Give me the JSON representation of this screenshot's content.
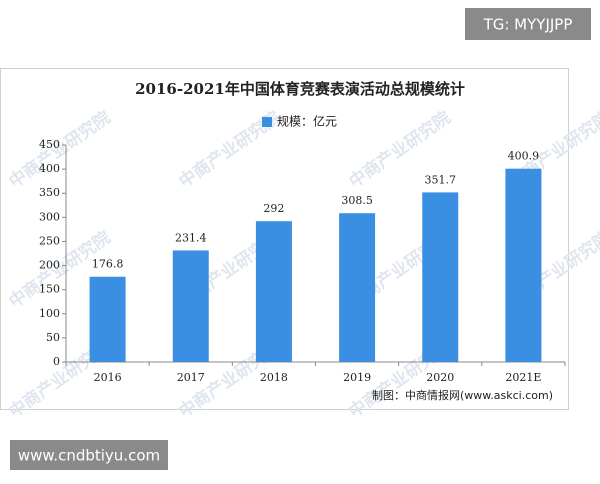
{
  "chart_data": {
    "type": "bar",
    "title": "2016-2021年中国体育竞赛表演活动总规模统计",
    "categories": [
      "2016",
      "2017",
      "2018",
      "2019",
      "2020",
      "2021E"
    ],
    "series": [
      {
        "name": "规模：亿元",
        "color": "#3a8fe3",
        "values": [
          176.8,
          231.4,
          292,
          308.5,
          351.7,
          400.9
        ]
      }
    ],
    "ylim": [
      0,
      450
    ],
    "yticks": [
      0,
      50,
      100,
      150,
      200,
      250,
      300,
      350,
      400,
      450
    ],
    "source": "制图：中商情报网(www.askci.com)",
    "watermark": "中商产业研究院"
  },
  "overlay": {
    "tag": "TG: MYYJJPP",
    "site": "www.cndbtiyu.com"
  }
}
